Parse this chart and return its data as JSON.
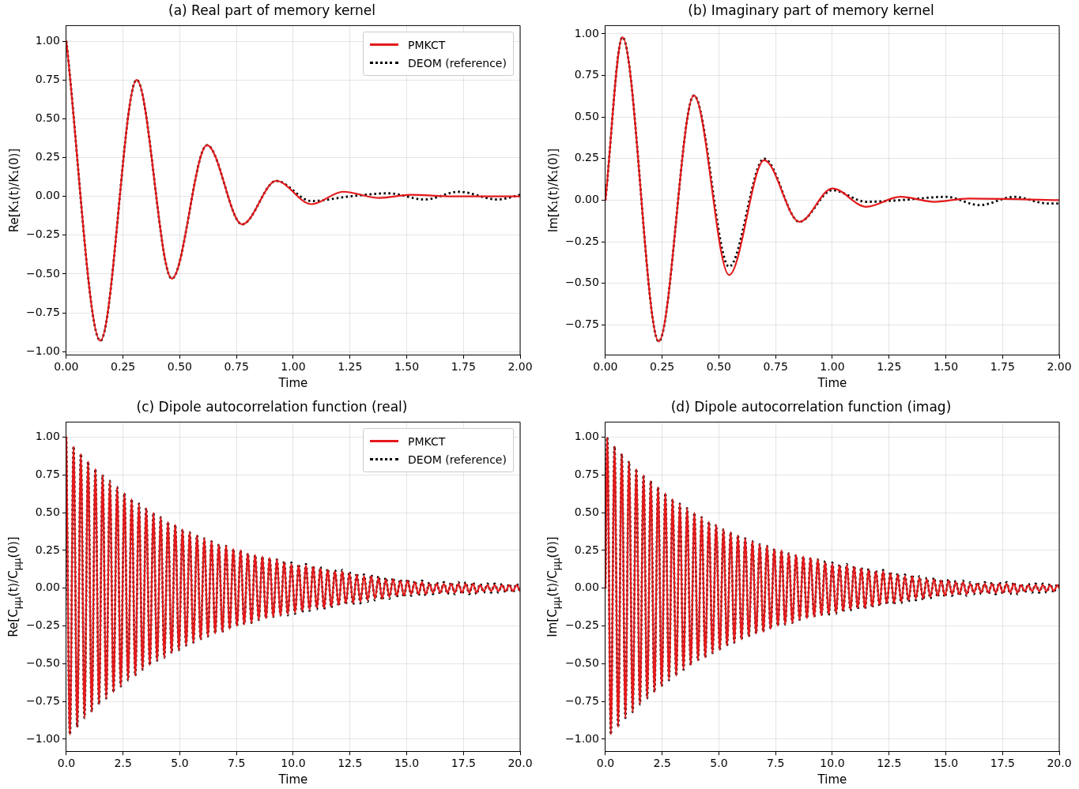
{
  "chart_data": [
    {
      "type": "line",
      "title": "(a) Real part of memory kernel",
      "xlabel": "Time",
      "ylabel": "Re[K₁(t)/K₁(0)]",
      "xlim": [
        0,
        2
      ],
      "ylim": [
        -1.02,
        1.1
      ],
      "xticks": [
        {
          "value": 0,
          "label": "0.00"
        },
        {
          "value": 0.25,
          "label": "0.25"
        },
        {
          "value": 0.5,
          "label": "0.50"
        },
        {
          "value": 0.75,
          "label": "0.75"
        },
        {
          "value": 1,
          "label": "1.00"
        },
        {
          "value": 1.25,
          "label": "1.25"
        },
        {
          "value": 1.5,
          "label": "1.50"
        },
        {
          "value": 1.75,
          "label": "1.75"
        },
        {
          "value": 2,
          "label": "2.00"
        }
      ],
      "yticks": [
        {
          "value": -1,
          "label": "−1.00"
        },
        {
          "value": -0.75,
          "label": "−0.75"
        },
        {
          "value": -0.5,
          "label": "−0.50"
        },
        {
          "value": -0.25,
          "label": "−0.25"
        },
        {
          "value": 0,
          "label": "0.00"
        },
        {
          "value": 0.25,
          "label": "0.25"
        },
        {
          "value": 0.5,
          "label": "0.50"
        },
        {
          "value": 0.75,
          "label": "0.75"
        },
        {
          "value": 1,
          "label": "1.00"
        }
      ],
      "grid": true,
      "legend": "top right",
      "marker": "none",
      "series": [
        {
          "name": "PMKCT",
          "color": "#e41a1c",
          "line_style": "solid",
          "x": [
            0,
            0.15,
            0.31,
            0.465,
            0.62,
            0.775,
            0.925,
            1.08,
            1.22,
            1.38,
            1.52,
            1.7,
            2
          ],
          "values": [
            1,
            -0.93,
            0.75,
            -0.53,
            0.33,
            -0.18,
            0.1,
            -0.05,
            0.03,
            -0.01,
            0.01,
            0,
            0
          ]
        },
        {
          "name": "DEOM (reference)",
          "color": "#000000",
          "line_style": "dotted",
          "x": [
            0,
            0.15,
            0.31,
            0.465,
            0.62,
            0.775,
            0.925,
            1.08,
            1.25,
            1.42,
            1.58,
            1.73,
            1.9,
            2
          ],
          "values": [
            1,
            -0.93,
            0.75,
            -0.53,
            0.33,
            -0.18,
            0.1,
            -0.03,
            0,
            0.02,
            -0.02,
            0.03,
            -0.02,
            0.01
          ]
        }
      ]
    },
    {
      "type": "line",
      "title": "(b) Imaginary part of memory kernel",
      "xlabel": "Time",
      "ylabel": "Im[K₁(t)/K₁(0)]",
      "xlim": [
        0,
        2
      ],
      "ylim": [
        -0.93,
        1.05
      ],
      "xticks": [
        {
          "value": 0,
          "label": "0.00"
        },
        {
          "value": 0.25,
          "label": "0.25"
        },
        {
          "value": 0.5,
          "label": "0.50"
        },
        {
          "value": 0.75,
          "label": "0.75"
        },
        {
          "value": 1,
          "label": "1.00"
        },
        {
          "value": 1.25,
          "label": "1.25"
        },
        {
          "value": 1.5,
          "label": "1.50"
        },
        {
          "value": 1.75,
          "label": "1.75"
        },
        {
          "value": 2,
          "label": "2.00"
        }
      ],
      "yticks": [
        {
          "value": -0.75,
          "label": "−0.75"
        },
        {
          "value": -0.5,
          "label": "−0.50"
        },
        {
          "value": -0.25,
          "label": "−0.25"
        },
        {
          "value": 0,
          "label": "0.00"
        },
        {
          "value": 0.25,
          "label": "0.25"
        },
        {
          "value": 0.5,
          "label": "0.50"
        },
        {
          "value": 0.75,
          "label": "0.75"
        },
        {
          "value": 1,
          "label": "1.00"
        }
      ],
      "grid": true,
      "marker": "none",
      "series": [
        {
          "color": "#e41a1c",
          "line_style": "solid",
          "x": [
            0,
            0.075,
            0.235,
            0.39,
            0.545,
            0.7,
            0.855,
            1,
            1.15,
            1.3,
            1.45,
            1.6,
            2
          ],
          "values": [
            0,
            0.98,
            -0.85,
            0.63,
            -0.45,
            0.24,
            -0.13,
            0.07,
            -0.04,
            0.02,
            -0.01,
            0.01,
            0
          ]
        },
        {
          "color": "#000000",
          "line_style": "dotted",
          "x": [
            0,
            0.075,
            0.235,
            0.39,
            0.545,
            0.7,
            0.855,
            1,
            1.15,
            1.3,
            1.5,
            1.65,
            1.8,
            1.95,
            2
          ],
          "values": [
            0,
            0.98,
            -0.85,
            0.63,
            -0.4,
            0.25,
            -0.13,
            0.06,
            -0.01,
            0,
            0.02,
            -0.03,
            0.02,
            -0.02,
            -0.02
          ]
        }
      ]
    },
    {
      "type": "line",
      "title": "(c) Dipole autocorrelation function (real)",
      "xlabel": "Time",
      "ylabel": "Re[C$_{μμ}$(t)/C$_{μμ}$(0)]",
      "xlim": [
        0,
        20
      ],
      "ylim": [
        -1.08,
        1.1
      ],
      "xticks": [
        {
          "value": 0,
          "label": "0.0"
        },
        {
          "value": 2.5,
          "label": "2.5"
        },
        {
          "value": 5,
          "label": "5.0"
        },
        {
          "value": 7.5,
          "label": "7.5"
        },
        {
          "value": 10,
          "label": "10.0"
        },
        {
          "value": 12.5,
          "label": "12.5"
        },
        {
          "value": 15,
          "label": "15.0"
        },
        {
          "value": 17.5,
          "label": "17.5"
        },
        {
          "value": 20,
          "label": "20.0"
        }
      ],
      "yticks": [
        {
          "value": -1,
          "label": "−1.00"
        },
        {
          "value": -0.75,
          "label": "−0.75"
        },
        {
          "value": -0.5,
          "label": "−0.50"
        },
        {
          "value": -0.25,
          "label": "−0.25"
        },
        {
          "value": 0,
          "label": "0.00"
        },
        {
          "value": 0.25,
          "label": "0.25"
        },
        {
          "value": 0.5,
          "label": "0.50"
        },
        {
          "value": 0.75,
          "label": "0.75"
        },
        {
          "value": 1,
          "label": "1.00"
        }
      ],
      "grid": true,
      "legend": "top right",
      "marker": "none",
      "x": [
        0,
        0.16,
        0.32,
        0.48,
        0.64,
        0.8,
        0.96,
        1.12,
        1.28,
        1.44,
        1.6,
        1.76,
        1.92,
        2.08,
        2.24,
        2.4,
        2.56,
        2.72,
        2.88,
        3.04,
        3.2,
        3.36,
        3.52,
        3.68,
        3.84,
        4,
        4.16,
        4.32,
        4.48,
        4.64,
        4.8,
        4.96,
        5.12,
        5.28,
        5.44,
        5.6,
        5.76,
        5.92,
        6.08,
        6.24,
        6.4,
        6.56,
        6.72,
        6.88,
        7.04,
        7.2,
        7.36,
        7.52,
        7.68,
        7.84,
        8,
        8.16,
        8.32,
        8.48,
        8.64,
        8.8,
        8.96,
        9.12,
        9.28,
        9.44,
        9.6,
        9.76,
        9.92,
        10.08,
        10.24,
        10.4,
        10.56,
        10.72,
        10.88,
        11.04,
        11.2,
        11.36,
        11.52,
        11.68,
        11.84,
        12,
        12.16,
        12.32,
        12.48,
        12.64,
        12.8,
        12.96,
        13.12,
        13.28,
        13.44,
        13.6,
        13.76,
        13.92,
        14.08,
        14.24,
        14.4,
        14.56,
        14.72,
        14.88,
        15.04,
        15.2,
        15.36,
        15.52,
        15.68,
        15.84,
        16,
        16.16,
        16.32,
        16.48,
        16.64,
        16.8,
        16.96,
        17.12,
        17.28,
        17.44,
        17.6,
        17.76,
        17.92,
        18.08,
        18.24,
        18.4,
        18.56,
        18.72,
        18.88,
        19.04,
        19.2,
        19.36,
        19.52,
        19.68,
        19.84,
        20
      ],
      "series": [
        {
          "name": "PMKCT",
          "color": "#e41a1c",
          "line_style": "solid",
          "values": [
            1,
            -0.97,
            0.94,
            -0.92,
            0.89,
            -0.86,
            0.84,
            -0.82,
            0.79,
            -0.77,
            0.75,
            -0.73,
            0.71,
            -0.69,
            0.67,
            -0.65,
            0.63,
            -0.61,
            0.59,
            -0.58,
            0.56,
            -0.54,
            0.53,
            -0.51,
            0.5,
            -0.48,
            0.47,
            -0.46,
            0.44,
            -0.43,
            0.42,
            -0.41,
            0.39,
            -0.38,
            0.37,
            -0.36,
            0.35,
            -0.34,
            0.33,
            -0.32,
            0.31,
            -0.3,
            0.29,
            -0.29,
            0.28,
            -0.27,
            0.26,
            -0.25,
            0.25,
            -0.24,
            0.23,
            -0.23,
            0.22,
            -0.21,
            0.21,
            -0.2,
            0.2,
            -0.19,
            0.19,
            -0.18,
            0.17,
            -0.17,
            0.16,
            -0.16,
            0.15,
            -0.15,
            0.15,
            -0.14,
            0.14,
            -0.13,
            0.13,
            -0.13,
            0.12,
            -0.12,
            0.11,
            -0.11,
            0.11,
            -0.1,
            0.1,
            -0.1,
            0.09,
            -0.09,
            0.08,
            -0.08,
            0.08,
            -0.07,
            0.07,
            -0.07,
            0.06,
            -0.06,
            0.06,
            -0.05,
            0.05,
            -0.05,
            0.05,
            -0.04,
            0.04,
            -0.04,
            0.04,
            -0.04,
            0.03,
            -0.03,
            0.03,
            -0.03,
            0.03,
            -0.03,
            0.03,
            -0.03,
            0.03,
            -0.03,
            0.03,
            -0.03,
            0.03,
            -0.03,
            0.02,
            -0.02,
            0.02,
            -0.02,
            0.02,
            -0.02,
            0.02,
            -0.02,
            0.02,
            -0.02,
            0.02,
            -0.02
          ]
        },
        {
          "name": "DEOM (reference)",
          "color": "#000000",
          "line_style": "dotted",
          "values": [
            1,
            -0.97,
            0.94,
            -0.92,
            0.89,
            -0.86,
            0.84,
            -0.82,
            0.79,
            -0.77,
            0.75,
            -0.73,
            0.71,
            -0.69,
            0.67,
            -0.65,
            0.63,
            -0.61,
            0.59,
            -0.58,
            0.56,
            -0.54,
            0.53,
            -0.51,
            0.5,
            -0.48,
            0.47,
            -0.46,
            0.44,
            -0.43,
            0.42,
            -0.41,
            0.39,
            -0.38,
            0.37,
            -0.36,
            0.35,
            -0.34,
            0.33,
            -0.32,
            0.31,
            -0.3,
            0.29,
            -0.29,
            0.28,
            -0.27,
            0.26,
            -0.25,
            0.25,
            -0.24,
            0.23,
            -0.23,
            0.22,
            -0.21,
            0.21,
            -0.2,
            0.2,
            -0.19,
            0.19,
            -0.18,
            0.18,
            -0.18,
            0.17,
            -0.17,
            0.16,
            -0.16,
            0.16,
            -0.15,
            0.15,
            -0.14,
            0.14,
            -0.14,
            0.13,
            -0.13,
            0.12,
            -0.12,
            0.12,
            -0.11,
            0.11,
            -0.11,
            0.1,
            -0.1,
            0.09,
            -0.09,
            0.09,
            -0.08,
            0.08,
            -0.08,
            0.07,
            -0.07,
            0.07,
            -0.06,
            0.06,
            -0.06,
            0.06,
            -0.05,
            0.05,
            -0.05,
            0.05,
            -0.05,
            0.04,
            -0.04,
            0.04,
            -0.04,
            0.04,
            -0.04,
            0.04,
            -0.04,
            0.04,
            -0.04,
            0.04,
            -0.04,
            0.04,
            -0.04,
            0.03,
            -0.03,
            0.03,
            -0.03,
            0.03,
            -0.03,
            0.03,
            -0.03,
            0.03,
            -0.03,
            0.03,
            -0.03
          ]
        }
      ]
    },
    {
      "type": "line",
      "title": "(d) Dipole autocorrelation function (imag)",
      "xlabel": "Time",
      "ylabel": "Im[C$_{μμ}$(t)/C$_{μμ}$(0)]",
      "xlim": [
        0,
        20
      ],
      "ylim": [
        -1.08,
        1.1
      ],
      "xticks": [
        {
          "value": 0,
          "label": "0.0"
        },
        {
          "value": 2.5,
          "label": "2.5"
        },
        {
          "value": 5,
          "label": "5.0"
        },
        {
          "value": 7.5,
          "label": "7.5"
        },
        {
          "value": 10,
          "label": "10.0"
        },
        {
          "value": 12.5,
          "label": "12.5"
        },
        {
          "value": 15,
          "label": "15.0"
        },
        {
          "value": 17.5,
          "label": "17.5"
        },
        {
          "value": 20,
          "label": "20.0"
        }
      ],
      "yticks": [
        {
          "value": -1,
          "label": "−1.00"
        },
        {
          "value": -0.75,
          "label": "−0.75"
        },
        {
          "value": -0.5,
          "label": "−0.50"
        },
        {
          "value": -0.25,
          "label": "−0.25"
        },
        {
          "value": 0,
          "label": "0.00"
        },
        {
          "value": 0.25,
          "label": "0.25"
        },
        {
          "value": 0.5,
          "label": "0.50"
        },
        {
          "value": 0.75,
          "label": "0.75"
        },
        {
          "value": 1,
          "label": "1.00"
        }
      ],
      "grid": true,
      "marker": "none",
      "x": [
        0,
        0.08,
        0.24,
        0.4,
        0.56,
        0.72,
        0.88,
        1.04,
        1.2,
        1.36,
        1.52,
        1.68,
        1.84,
        2,
        2.16,
        2.32,
        2.48,
        2.64,
        2.8,
        2.96,
        3.12,
        3.28,
        3.44,
        3.6,
        3.76,
        3.92,
        4.08,
        4.24,
        4.4,
        4.56,
        4.72,
        4.88,
        5.04,
        5.2,
        5.36,
        5.52,
        5.68,
        5.84,
        6,
        6.16,
        6.32,
        6.48,
        6.64,
        6.8,
        6.96,
        7.12,
        7.28,
        7.44,
        7.6,
        7.76,
        7.92,
        8.08,
        8.24,
        8.4,
        8.56,
        8.72,
        8.88,
        9.04,
        9.2,
        9.36,
        9.52,
        9.68,
        9.84,
        10,
        10.16,
        10.32,
        10.48,
        10.64,
        10.8,
        10.96,
        11.12,
        11.28,
        11.44,
        11.6,
        11.76,
        11.92,
        12.08,
        12.24,
        12.4,
        12.56,
        12.72,
        12.88,
        13.04,
        13.2,
        13.36,
        13.52,
        13.68,
        13.84,
        14,
        14.16,
        14.32,
        14.48,
        14.64,
        14.8,
        14.96,
        15.12,
        15.28,
        15.44,
        15.6,
        15.76,
        15.92,
        16.08,
        16.24,
        16.4,
        16.56,
        16.72,
        16.88,
        17.04,
        17.2,
        17.36,
        17.52,
        17.68,
        17.84,
        18,
        18.16,
        18.32,
        18.48,
        18.64,
        18.8,
        18.96,
        19.12,
        19.28,
        19.44,
        19.6,
        19.76,
        19.92,
        20
      ],
      "series": [
        {
          "color": "#e41a1c",
          "line_style": "solid",
          "values": [
            0,
            1,
            -0.97,
            0.94,
            -0.92,
            0.89,
            -0.86,
            0.84,
            -0.82,
            0.79,
            -0.77,
            0.75,
            -0.73,
            0.71,
            -0.69,
            0.67,
            -0.65,
            0.63,
            -0.61,
            0.59,
            -0.58,
            0.56,
            -0.54,
            0.53,
            -0.51,
            0.5,
            -0.48,
            0.47,
            -0.46,
            0.44,
            -0.43,
            0.42,
            -0.41,
            0.39,
            -0.38,
            0.37,
            -0.36,
            0.35,
            -0.34,
            0.33,
            -0.32,
            0.31,
            -0.3,
            0.29,
            -0.29,
            0.28,
            -0.27,
            0.26,
            -0.25,
            0.25,
            -0.24,
            0.23,
            -0.23,
            0.22,
            -0.21,
            0.21,
            -0.2,
            0.2,
            -0.19,
            0.19,
            -0.18,
            0.17,
            -0.17,
            0.16,
            -0.16,
            0.15,
            -0.15,
            0.15,
            -0.14,
            0.14,
            -0.13,
            0.13,
            -0.13,
            0.12,
            -0.12,
            0.11,
            -0.11,
            0.11,
            -0.1,
            0.1,
            -0.1,
            0.09,
            -0.09,
            0.08,
            -0.08,
            0.08,
            -0.07,
            0.07,
            -0.07,
            0.06,
            -0.06,
            0.06,
            -0.05,
            0.05,
            -0.05,
            0.05,
            -0.04,
            0.04,
            -0.04,
            0.04,
            -0.04,
            0.03,
            -0.03,
            0.03,
            -0.03,
            0.03,
            -0.03,
            0.03,
            -0.03,
            0.03,
            -0.03,
            0.03,
            -0.03,
            0.03,
            -0.03,
            0.02,
            -0.02,
            0.02,
            -0.02,
            0.02,
            -0.02,
            0.02,
            -0.02,
            0.02,
            -0.02,
            0.02,
            0
          ]
        },
        {
          "color": "#000000",
          "line_style": "dotted",
          "values": [
            0,
            1,
            -0.97,
            0.94,
            -0.92,
            0.89,
            -0.86,
            0.84,
            -0.82,
            0.79,
            -0.77,
            0.75,
            -0.73,
            0.71,
            -0.69,
            0.67,
            -0.65,
            0.63,
            -0.61,
            0.59,
            -0.58,
            0.56,
            -0.54,
            0.53,
            -0.51,
            0.5,
            -0.48,
            0.47,
            -0.46,
            0.44,
            -0.43,
            0.42,
            -0.41,
            0.39,
            -0.38,
            0.37,
            -0.36,
            0.35,
            -0.34,
            0.33,
            -0.32,
            0.31,
            -0.3,
            0.29,
            -0.29,
            0.28,
            -0.27,
            0.26,
            -0.25,
            0.25,
            -0.24,
            0.23,
            -0.23,
            0.22,
            -0.21,
            0.21,
            -0.2,
            0.2,
            -0.19,
            0.19,
            -0.18,
            0.18,
            -0.18,
            0.17,
            -0.17,
            0.16,
            -0.16,
            0.16,
            -0.15,
            0.15,
            -0.14,
            0.14,
            -0.14,
            0.13,
            -0.13,
            0.12,
            -0.12,
            0.12,
            -0.11,
            0.11,
            -0.11,
            0.1,
            -0.1,
            0.09,
            -0.09,
            0.09,
            -0.08,
            0.08,
            -0.08,
            0.07,
            -0.07,
            0.07,
            -0.06,
            0.06,
            -0.06,
            0.06,
            -0.05,
            0.05,
            -0.05,
            0.05,
            -0.05,
            0.04,
            -0.04,
            0.04,
            -0.04,
            0.04,
            -0.04,
            0.04,
            -0.04,
            0.04,
            -0.04,
            0.04,
            -0.04,
            0.04,
            -0.04,
            0.03,
            -0.03,
            0.03,
            -0.03,
            0.03,
            -0.03,
            0.03,
            -0.03,
            0.03,
            -0.03,
            0.03,
            0
          ]
        }
      ]
    }
  ]
}
